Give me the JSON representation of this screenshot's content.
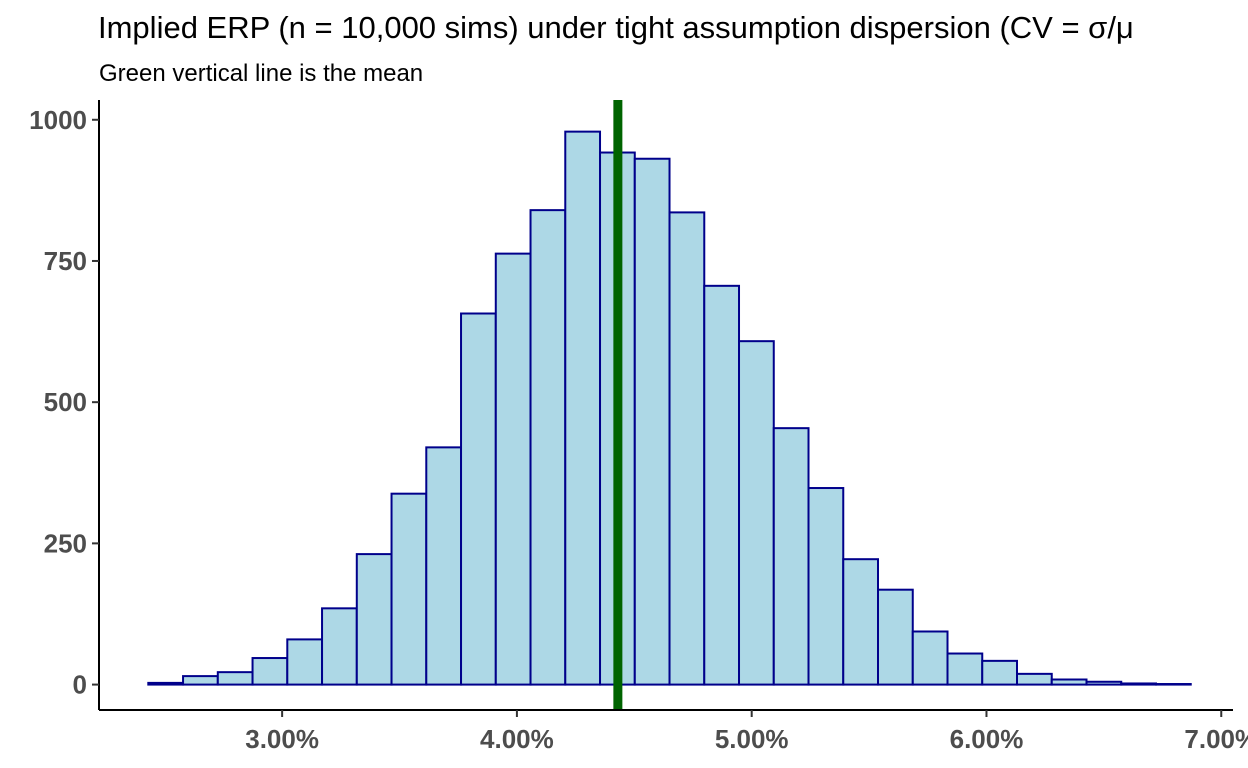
{
  "chart_data": {
    "type": "bar",
    "title": "Implied ERP (n = 10,000 sims) under tight assumption dispersion (CV = σ/μ",
    "subtitle": "Green vertical line is the mean",
    "xlabel": "",
    "ylabel": "",
    "bin_width": 0.00148,
    "bin_start": 0.0243,
    "values": [
      3,
      15,
      22,
      47,
      80,
      135,
      231,
      338,
      420,
      657,
      763,
      840,
      979,
      942,
      931,
      836,
      706,
      608,
      454,
      348,
      222,
      168,
      94,
      55,
      42,
      19,
      9,
      5,
      2,
      1
    ],
    "mean": 0.0443,
    "xlim": [
      0.0222,
      0.0705
    ],
    "ylim": [
      -45,
      1035
    ],
    "x_ticks": [
      0.03,
      0.04,
      0.05,
      0.06,
      0.07
    ],
    "x_tick_labels": [
      "3.00%",
      "4.00%",
      "5.00%",
      "6.00%",
      "7.00%"
    ],
    "y_ticks": [
      0,
      250,
      500,
      750,
      1000
    ],
    "y_tick_labels": [
      "0",
      "250",
      "500",
      "750",
      "1000"
    ],
    "grid": false,
    "colors": {
      "bar_fill": "#add8e6",
      "bar_stroke": "#00008b",
      "mean_line": "#006400",
      "axis": "#000000",
      "tick_text": "#4d4d4d"
    }
  }
}
